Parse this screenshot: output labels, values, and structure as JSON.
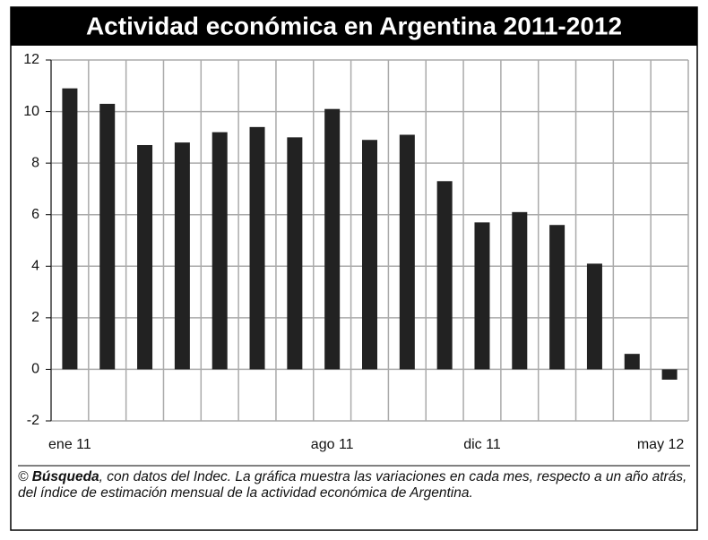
{
  "chart_data": {
    "type": "bar",
    "title": "Actividad económica en Argentina 2011-2012",
    "categories": [
      "ene 11",
      null,
      null,
      null,
      null,
      null,
      null,
      "ago 11",
      null,
      null,
      null,
      "dic 11",
      null,
      null,
      null,
      null,
      "may 12"
    ],
    "values": [
      10.9,
      10.3,
      8.7,
      8.8,
      9.2,
      9.4,
      9.0,
      10.1,
      8.9,
      9.1,
      7.3,
      5.7,
      6.1,
      5.6,
      4.1,
      0.6,
      -0.4
    ],
    "color": "#222222",
    "ylim": [
      -2,
      12
    ],
    "yticks": [
      -2,
      0,
      2,
      4,
      6,
      8,
      10,
      12
    ],
    "grid": true,
    "footer": {
      "copyright": "©",
      "source": "Búsqueda",
      "text": ", con datos del Indec. La gráfica muestra las variaciones en cada mes, respecto a un año atrás, del índice de estimación mensual de la actividad económica de Argentina."
    }
  }
}
